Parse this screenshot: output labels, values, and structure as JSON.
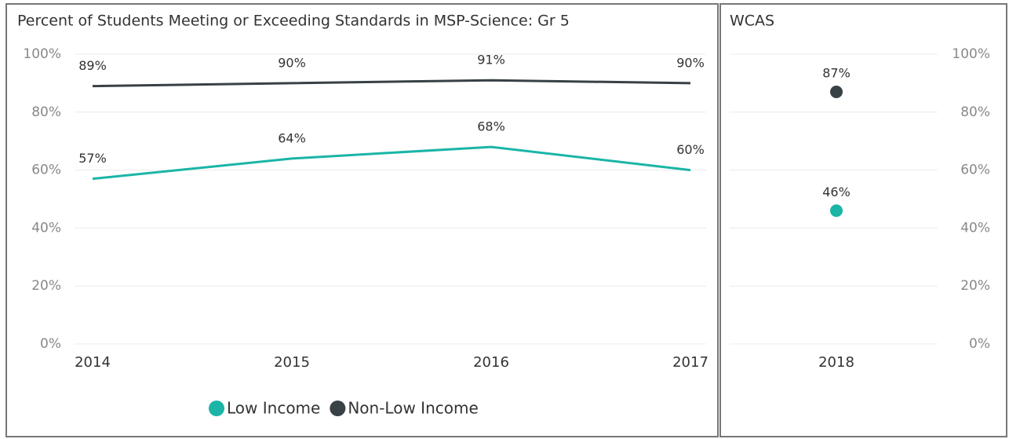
{
  "chart_data": [
    {
      "type": "line",
      "title": "Percent of Students Meeting or Exceeding Standards in MSP-Science: Gr 5",
      "categories": [
        "2014",
        "2015",
        "2016",
        "2017"
      ],
      "series": [
        {
          "name": "Low Income",
          "color": "#1ab5a7",
          "values": [
            57,
            64,
            68,
            60
          ],
          "value_labels": [
            "57%",
            "64%",
            "68%",
            "60%"
          ]
        },
        {
          "name": "Non-Low Income",
          "color": "#374146",
          "values": [
            89,
            90,
            91,
            90
          ],
          "value_labels": [
            "89%",
            "90%",
            "91%",
            "90%"
          ]
        }
      ],
      "ylim": [
        0,
        100
      ],
      "yticks": [
        {
          "value": 0,
          "label": "0%"
        },
        {
          "value": 20,
          "label": "20%"
        },
        {
          "value": 40,
          "label": "40%"
        },
        {
          "value": 60,
          "label": "60%"
        },
        {
          "value": 80,
          "label": "80%"
        },
        {
          "value": 100,
          "label": "100%"
        }
      ],
      "grid": true,
      "legend": "bottom"
    },
    {
      "type": "scatter",
      "title": "WCAS",
      "categories": [
        "2018"
      ],
      "series": [
        {
          "name": "Low Income",
          "color": "#1ab5a7",
          "values": [
            46
          ],
          "value_labels": [
            "46%"
          ]
        },
        {
          "name": "Non-Low Income",
          "color": "#374146",
          "values": [
            87
          ],
          "value_labels": [
            "87%"
          ]
        }
      ],
      "ylim": [
        0,
        100
      ],
      "yticks": [
        {
          "value": 0,
          "label": "0%"
        },
        {
          "value": 20,
          "label": "20%"
        },
        {
          "value": 40,
          "label": "40%"
        },
        {
          "value": 60,
          "label": "60%"
        },
        {
          "value": 80,
          "label": "80%"
        },
        {
          "value": 100,
          "label": "100%"
        }
      ],
      "grid": true
    }
  ]
}
